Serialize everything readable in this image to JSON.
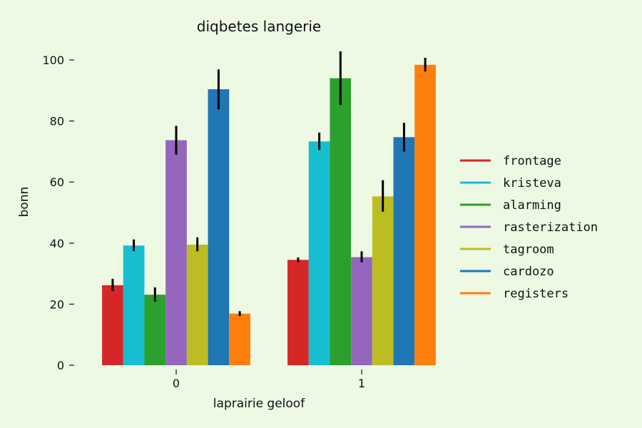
{
  "chart_data": {
    "type": "bar",
    "title": "diqbetes langerie",
    "xlabel": "laprairie geloof",
    "ylabel": "bonn",
    "categories": [
      "0",
      "1"
    ],
    "ylim": [
      0,
      100
    ],
    "yticks": [
      0,
      20,
      40,
      60,
      80,
      100
    ],
    "grid": false,
    "legend_position": "right",
    "series": [
      {
        "name": "frontage",
        "color": "#d62728",
        "values": [
          26.2,
          34.5
        ],
        "err_low": [
          24.3,
          33.8
        ],
        "err_high": [
          28.3,
          35.3
        ]
      },
      {
        "name": "kristeva",
        "color": "#17becf",
        "values": [
          39.2,
          73.3
        ],
        "err_low": [
          37.4,
          70.5
        ],
        "err_high": [
          41.2,
          76.2
        ]
      },
      {
        "name": "alarming",
        "color": "#2ca02c",
        "values": [
          23.1,
          94.0
        ],
        "err_low": [
          20.8,
          85.3
        ],
        "err_high": [
          25.5,
          102.8
        ]
      },
      {
        "name": "rasterization",
        "color": "#9467bd",
        "values": [
          73.7,
          35.4
        ],
        "err_low": [
          69.0,
          33.7
        ],
        "err_high": [
          78.4,
          37.3
        ]
      },
      {
        "name": "tagroom",
        "color": "#bcbd22",
        "values": [
          39.5,
          55.3
        ],
        "err_low": [
          37.3,
          50.3
        ],
        "err_high": [
          41.9,
          60.6
        ]
      },
      {
        "name": "cardozo",
        "color": "#1f77b4",
        "values": [
          90.4,
          74.7
        ],
        "err_low": [
          83.8,
          70.0
        ],
        "err_high": [
          96.9,
          79.4
        ]
      },
      {
        "name": "registers",
        "color": "#ff7f0e",
        "values": [
          16.9,
          98.4
        ],
        "err_low": [
          16.1,
          96.2
        ],
        "err_high": [
          17.7,
          100.7
        ]
      }
    ]
  }
}
